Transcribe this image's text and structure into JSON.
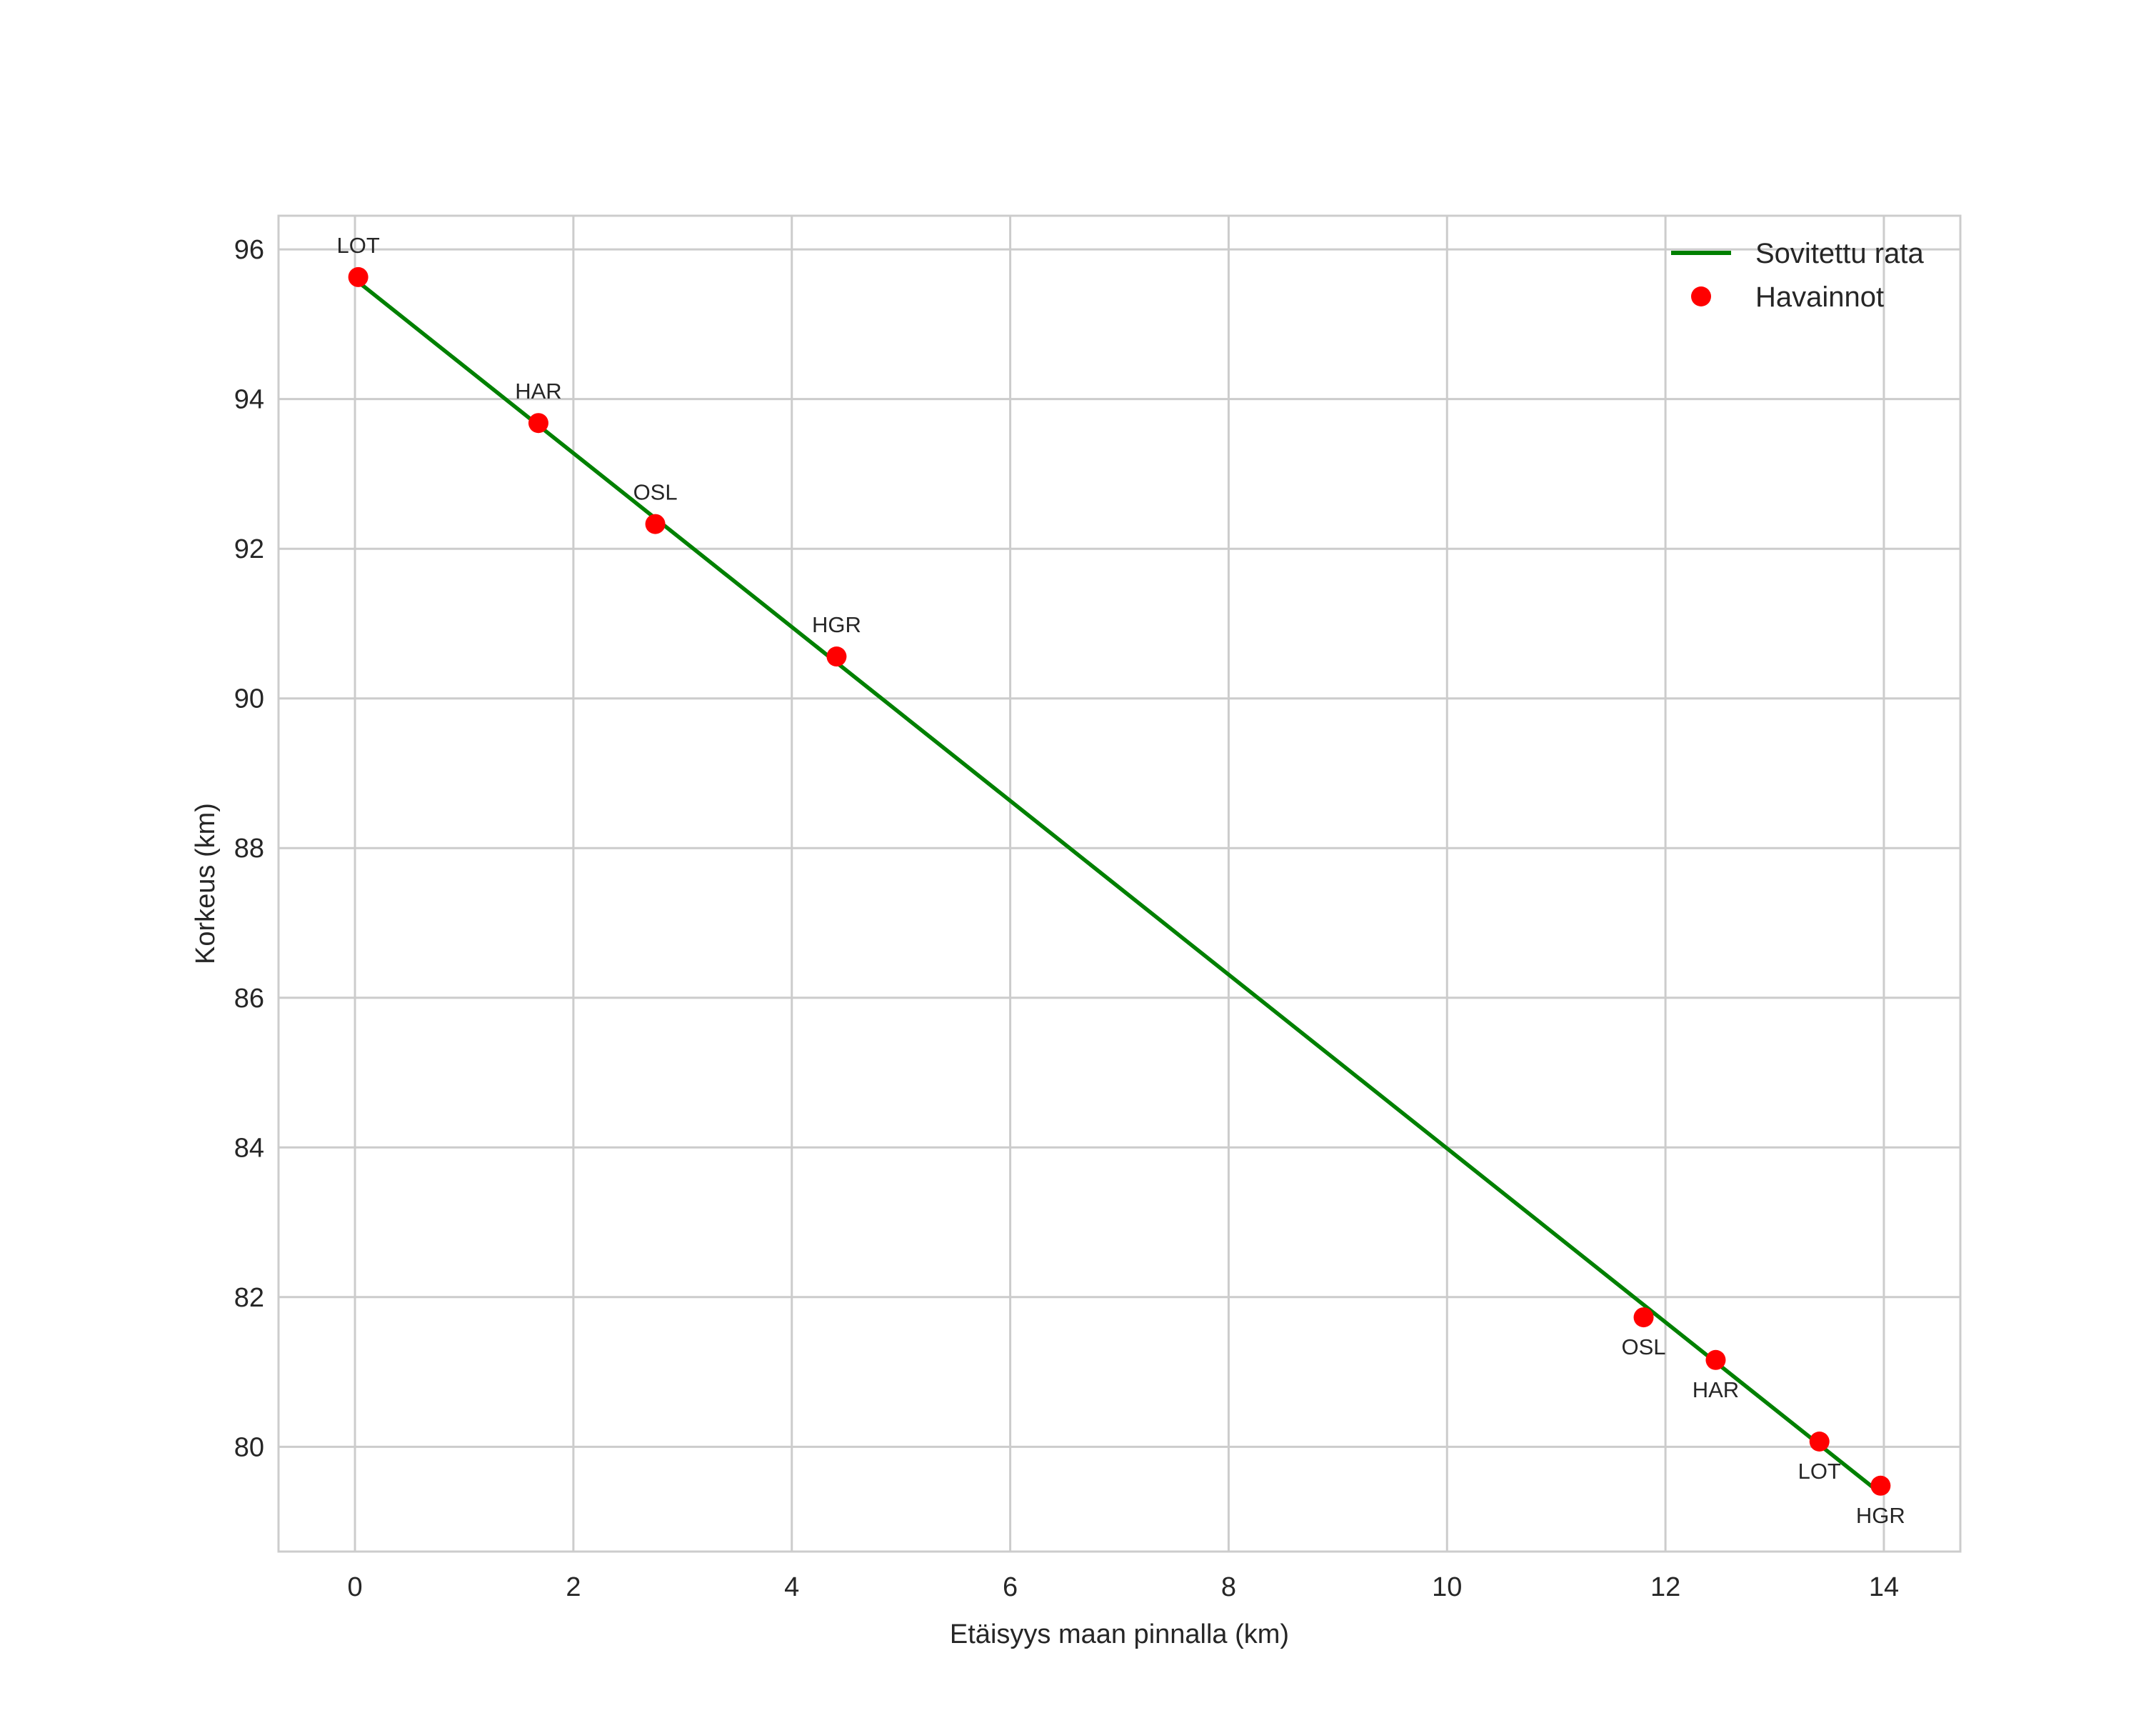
{
  "chart_data": {
    "type": "line+scatter",
    "title": "",
    "xlabel": "Etäisyys maan pinnalla (km)",
    "ylabel": "Korkeus (km)",
    "xlim": [
      -0.7,
      14.7
    ],
    "ylim": [
      78.6,
      96.45
    ],
    "xticks": [
      0,
      2,
      4,
      6,
      8,
      10,
      12,
      14
    ],
    "yticks": [
      80,
      82,
      84,
      86,
      88,
      90,
      92,
      94,
      96
    ],
    "grid": true,
    "legend_position": "upper right",
    "series": [
      {
        "name": "Sovitettu rata",
        "kind": "line",
        "color": "#008000",
        "x": [
          0.0,
          13.95
        ],
        "y": [
          95.6,
          79.4
        ]
      },
      {
        "name": "Havainnot",
        "kind": "scatter",
        "color": "#ff0000",
        "points": [
          {
            "label": "LOT",
            "x": 0.03,
            "y": 95.63,
            "label_pos": "above"
          },
          {
            "label": "HAR",
            "x": 1.68,
            "y": 93.68,
            "label_pos": "above"
          },
          {
            "label": "OSL",
            "x": 2.75,
            "y": 92.33,
            "label_pos": "above"
          },
          {
            "label": "HGR",
            "x": 4.41,
            "y": 90.56,
            "label_pos": "above"
          },
          {
            "label": "OSL",
            "x": 11.8,
            "y": 81.73,
            "label_pos": "below"
          },
          {
            "label": "HAR",
            "x": 12.46,
            "y": 81.16,
            "label_pos": "below"
          },
          {
            "label": "LOT",
            "x": 13.41,
            "y": 80.07,
            "label_pos": "below"
          },
          {
            "label": "HGR",
            "x": 13.97,
            "y": 79.48,
            "label_pos": "below"
          }
        ]
      }
    ]
  },
  "legend": {
    "line_label": "Sovitettu rata",
    "points_label": "Havainnot"
  },
  "colors": {
    "line": "#008000",
    "points": "#ff0000",
    "grid": "#cccccc",
    "text": "#262626"
  }
}
